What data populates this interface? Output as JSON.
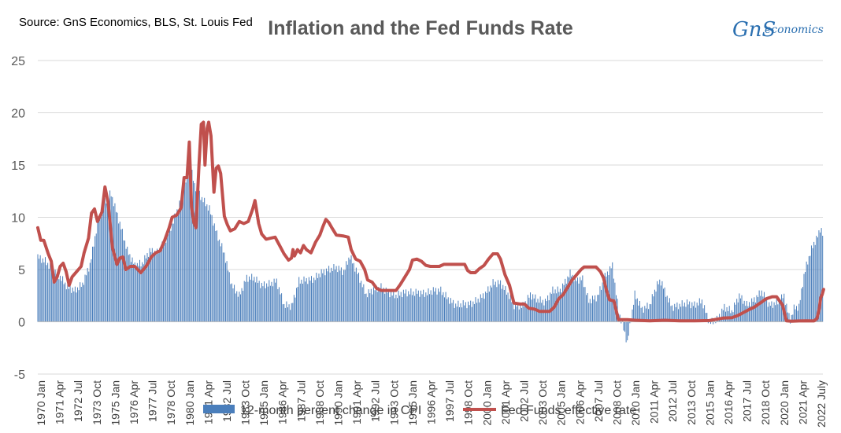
{
  "chart_data": {
    "type": "bar+line",
    "title": "Inflation and the Fed Funds Rate",
    "source": "Source: GnS Economics, BLS, St. Louis Fed",
    "logo": {
      "mark": "GnS",
      "word": "economics"
    },
    "ylim": [
      -5,
      25
    ],
    "yticks": [
      -5,
      0,
      5,
      10,
      15,
      20,
      25
    ],
    "xlim": [
      1970.0,
      2022.6
    ],
    "grid": true,
    "legend_position": "bottom",
    "x_tick_labels": [
      "1970 Jan",
      "1971 Apr",
      "1972 Jul",
      "1973 Oct",
      "1975 Jan",
      "1976 Apr",
      "1977 Jul",
      "1978 Oct",
      "1980 Jan",
      "1981 Apr",
      "1982 Jul",
      "1983 Oct",
      "1985 Jan",
      "1986 Apr",
      "1987 Jul",
      "1988 Oct",
      "1990 Jan",
      "1991 Apr",
      "1992 Jul",
      "1993 Oct",
      "1995 Jan",
      "1996 Apr",
      "1997 Jul",
      "1998 Oct",
      "2000 Jan",
      "2001 Apr",
      "2002 Jul",
      "2003 Oct",
      "2005 Jan",
      "2006 Apr",
      "2007 Jul",
      "2008 Oct",
      "2010 Jan",
      "2011 Apr",
      "2012 Jul",
      "2013 Oct",
      "2015 Jan",
      "2016 Apr",
      "2017 Jul",
      "2018 Oct",
      "2020 Jan",
      "2021 Apr",
      "2022 July"
    ],
    "series": [
      {
        "name": "12-month percent change in CPI",
        "type": "bar",
        "color": "#4a7ebb",
        "points": [
          [
            1970.0,
            6.2
          ],
          [
            1970.5,
            5.8
          ],
          [
            1971.0,
            5.0
          ],
          [
            1971.5,
            4.3
          ],
          [
            1972.0,
            3.3
          ],
          [
            1972.5,
            3.0
          ],
          [
            1973.0,
            3.6
          ],
          [
            1973.5,
            5.5
          ],
          [
            1974.0,
            9.4
          ],
          [
            1974.5,
            11.5
          ],
          [
            1974.9,
            12.3
          ],
          [
            1975.5,
            9.4
          ],
          [
            1976.0,
            6.8
          ],
          [
            1976.5,
            5.4
          ],
          [
            1977.0,
            5.6
          ],
          [
            1977.5,
            6.8
          ],
          [
            1978.0,
            6.6
          ],
          [
            1978.5,
            7.7
          ],
          [
            1979.0,
            9.3
          ],
          [
            1979.5,
            11.3
          ],
          [
            1980.0,
            13.9
          ],
          [
            1980.25,
            14.7
          ],
          [
            1980.5,
            13.1
          ],
          [
            1981.0,
            11.8
          ],
          [
            1981.5,
            10.8
          ],
          [
            1982.0,
            8.4
          ],
          [
            1982.5,
            6.5
          ],
          [
            1983.0,
            3.5
          ],
          [
            1983.5,
            2.5
          ],
          [
            1984.0,
            4.2
          ],
          [
            1984.5,
            4.2
          ],
          [
            1985.0,
            3.5
          ],
          [
            1985.5,
            3.6
          ],
          [
            1986.0,
            3.9
          ],
          [
            1986.5,
            1.6
          ],
          [
            1987.0,
            1.5
          ],
          [
            1987.5,
            3.9
          ],
          [
            1988.0,
            4.0
          ],
          [
            1988.5,
            4.1
          ],
          [
            1989.0,
            4.7
          ],
          [
            1989.5,
            5.0
          ],
          [
            1990.0,
            5.2
          ],
          [
            1990.5,
            4.8
          ],
          [
            1990.9,
            6.3
          ],
          [
            1991.5,
            4.4
          ],
          [
            1992.0,
            2.6
          ],
          [
            1992.5,
            3.1
          ],
          [
            1993.0,
            3.3
          ],
          [
            1993.5,
            2.8
          ],
          [
            1994.0,
            2.5
          ],
          [
            1994.5,
            2.8
          ],
          [
            1995.0,
            2.8
          ],
          [
            1995.5,
            2.8
          ],
          [
            1996.0,
            2.7
          ],
          [
            1996.5,
            3.0
          ],
          [
            1997.0,
            3.0
          ],
          [
            1997.5,
            2.2
          ],
          [
            1998.0,
            1.6
          ],
          [
            1998.5,
            1.7
          ],
          [
            1999.0,
            1.7
          ],
          [
            1999.5,
            2.1
          ],
          [
            2000.0,
            2.7
          ],
          [
            2000.5,
            3.7
          ],
          [
            2001.0,
            3.7
          ],
          [
            2001.5,
            2.7
          ],
          [
            2001.9,
            1.6
          ],
          [
            2002.5,
            1.5
          ],
          [
            2003.0,
            2.6
          ],
          [
            2003.5,
            2.1
          ],
          [
            2004.0,
            1.9
          ],
          [
            2004.5,
            3.0
          ],
          [
            2005.0,
            3.0
          ],
          [
            2005.7,
            4.7
          ],
          [
            2006.0,
            4.0
          ],
          [
            2006.5,
            4.1
          ],
          [
            2006.9,
            2.0
          ],
          [
            2007.5,
            2.4
          ],
          [
            2008.0,
            4.3
          ],
          [
            2008.5,
            5.4
          ],
          [
            2008.9,
            1.1
          ],
          [
            2009.5,
            -2.0
          ],
          [
            2010.0,
            2.6
          ],
          [
            2010.5,
            1.2
          ],
          [
            2011.0,
            1.6
          ],
          [
            2011.5,
            3.6
          ],
          [
            2011.8,
            3.9
          ],
          [
            2012.0,
            2.9
          ],
          [
            2012.5,
            1.4
          ],
          [
            2013.0,
            1.6
          ],
          [
            2013.5,
            1.8
          ],
          [
            2014.0,
            1.6
          ],
          [
            2014.5,
            2.0
          ],
          [
            2015.0,
            -0.1
          ],
          [
            2015.5,
            0.2
          ],
          [
            2016.0,
            1.4
          ],
          [
            2016.5,
            1.0
          ],
          [
            2017.0,
            2.5
          ],
          [
            2017.5,
            1.6
          ],
          [
            2018.0,
            2.1
          ],
          [
            2018.5,
            2.9
          ],
          [
            2019.0,
            1.6
          ],
          [
            2019.5,
            1.8
          ],
          [
            2020.0,
            2.5
          ],
          [
            2020.4,
            0.1
          ],
          [
            2020.7,
            1.4
          ],
          [
            2021.0,
            1.4
          ],
          [
            2021.3,
            4.2
          ],
          [
            2021.5,
            5.4
          ],
          [
            2021.8,
            6.8
          ],
          [
            2022.0,
            7.5
          ],
          [
            2022.3,
            8.3
          ],
          [
            2022.45,
            9.1
          ],
          [
            2022.6,
            8.3
          ]
        ]
      },
      {
        "name": "Fed Funds effective rate",
        "type": "line",
        "color": "#c0504d",
        "points": [
          [
            1970.0,
            9.0
          ],
          [
            1970.2,
            7.8
          ],
          [
            1970.4,
            7.8
          ],
          [
            1970.7,
            6.5
          ],
          [
            1970.9,
            5.8
          ],
          [
            1971.1,
            3.8
          ],
          [
            1971.3,
            4.3
          ],
          [
            1971.5,
            5.3
          ],
          [
            1971.7,
            5.6
          ],
          [
            1971.9,
            4.8
          ],
          [
            1972.1,
            3.5
          ],
          [
            1972.3,
            4.3
          ],
          [
            1972.6,
            4.8
          ],
          [
            1972.9,
            5.3
          ],
          [
            1973.1,
            6.6
          ],
          [
            1973.4,
            8.0
          ],
          [
            1973.6,
            10.4
          ],
          [
            1973.8,
            10.8
          ],
          [
            1974.0,
            9.6
          ],
          [
            1974.3,
            10.5
          ],
          [
            1974.5,
            12.9
          ],
          [
            1974.7,
            11.5
          ],
          [
            1975.0,
            7.1
          ],
          [
            1975.3,
            5.5
          ],
          [
            1975.5,
            6.1
          ],
          [
            1975.7,
            6.2
          ],
          [
            1975.9,
            5.0
          ],
          [
            1976.2,
            5.3
          ],
          [
            1976.5,
            5.3
          ],
          [
            1976.7,
            5.0
          ],
          [
            1976.9,
            4.7
          ],
          [
            1977.3,
            5.4
          ],
          [
            1977.6,
            6.2
          ],
          [
            1977.9,
            6.6
          ],
          [
            1978.2,
            6.8
          ],
          [
            1978.5,
            7.8
          ],
          [
            1978.8,
            9.0
          ],
          [
            1979.0,
            10.0
          ],
          [
            1979.3,
            10.2
          ],
          [
            1979.6,
            10.9
          ],
          [
            1979.8,
            13.8
          ],
          [
            1980.0,
            13.8
          ],
          [
            1980.15,
            17.2
          ],
          [
            1980.3,
            11.0
          ],
          [
            1980.45,
            9.5
          ],
          [
            1980.6,
            9.0
          ],
          [
            1980.8,
            15.0
          ],
          [
            1980.95,
            18.9
          ],
          [
            1981.1,
            19.1
          ],
          [
            1981.2,
            15.0
          ],
          [
            1981.35,
            18.5
          ],
          [
            1981.45,
            19.1
          ],
          [
            1981.6,
            17.8
          ],
          [
            1981.8,
            12.4
          ],
          [
            1981.95,
            14.7
          ],
          [
            1982.1,
            14.9
          ],
          [
            1982.25,
            14.2
          ],
          [
            1982.5,
            10.1
          ],
          [
            1982.7,
            9.3
          ],
          [
            1982.9,
            8.7
          ],
          [
            1983.2,
            8.9
          ],
          [
            1983.5,
            9.6
          ],
          [
            1983.8,
            9.4
          ],
          [
            1984.1,
            9.6
          ],
          [
            1984.4,
            10.8
          ],
          [
            1984.55,
            11.6
          ],
          [
            1984.8,
            9.4
          ],
          [
            1985.0,
            8.4
          ],
          [
            1985.3,
            7.9
          ],
          [
            1985.6,
            8.0
          ],
          [
            1985.9,
            8.1
          ],
          [
            1986.2,
            7.3
          ],
          [
            1986.5,
            6.5
          ],
          [
            1986.8,
            5.9
          ],
          [
            1987.0,
            6.1
          ],
          [
            1987.1,
            6.9
          ],
          [
            1987.2,
            6.3
          ],
          [
            1987.4,
            6.9
          ],
          [
            1987.6,
            6.6
          ],
          [
            1987.8,
            7.3
          ],
          [
            1988.0,
            6.9
          ],
          [
            1988.3,
            6.6
          ],
          [
            1988.6,
            7.6
          ],
          [
            1988.9,
            8.3
          ],
          [
            1989.1,
            9.1
          ],
          [
            1989.3,
            9.8
          ],
          [
            1989.5,
            9.5
          ],
          [
            1989.7,
            9.0
          ],
          [
            1990.0,
            8.3
          ],
          [
            1990.5,
            8.2
          ],
          [
            1990.8,
            8.1
          ],
          [
            1991.0,
            6.9
          ],
          [
            1991.3,
            6.0
          ],
          [
            1991.6,
            5.8
          ],
          [
            1991.9,
            5.0
          ],
          [
            1992.1,
            4.0
          ],
          [
            1992.4,
            3.8
          ],
          [
            1992.7,
            3.2
          ],
          [
            1993.0,
            3.0
          ],
          [
            1993.5,
            3.0
          ],
          [
            1994.0,
            3.0
          ],
          [
            1994.3,
            3.6
          ],
          [
            1994.6,
            4.3
          ],
          [
            1994.9,
            5.0
          ],
          [
            1995.1,
            5.9
          ],
          [
            1995.4,
            6.0
          ],
          [
            1995.7,
            5.8
          ],
          [
            1996.0,
            5.4
          ],
          [
            1996.3,
            5.3
          ],
          [
            1996.6,
            5.3
          ],
          [
            1996.9,
            5.3
          ],
          [
            1997.2,
            5.5
          ],
          [
            1997.6,
            5.5
          ],
          [
            1997.9,
            5.5
          ],
          [
            1998.3,
            5.5
          ],
          [
            1998.6,
            5.5
          ],
          [
            1998.8,
            4.9
          ],
          [
            1999.0,
            4.7
          ],
          [
            1999.3,
            4.7
          ],
          [
            1999.6,
            5.1
          ],
          [
            1999.9,
            5.4
          ],
          [
            2000.2,
            6.0
          ],
          [
            2000.5,
            6.5
          ],
          [
            2000.8,
            6.5
          ],
          [
            2001.0,
            6.0
          ],
          [
            2001.3,
            4.5
          ],
          [
            2001.6,
            3.5
          ],
          [
            2001.9,
            1.8
          ],
          [
            2002.3,
            1.7
          ],
          [
            2002.6,
            1.7
          ],
          [
            2002.9,
            1.3
          ],
          [
            2003.3,
            1.2
          ],
          [
            2003.6,
            1.0
          ],
          [
            2004.0,
            1.0
          ],
          [
            2004.3,
            1.0
          ],
          [
            2004.6,
            1.4
          ],
          [
            2004.9,
            2.2
          ],
          [
            2005.2,
            2.6
          ],
          [
            2005.5,
            3.3
          ],
          [
            2005.8,
            4.0
          ],
          [
            2006.1,
            4.5
          ],
          [
            2006.4,
            5.0
          ],
          [
            2006.6,
            5.25
          ],
          [
            2007.0,
            5.25
          ],
          [
            2007.4,
            5.25
          ],
          [
            2007.7,
            4.8
          ],
          [
            2007.9,
            4.2
          ],
          [
            2008.1,
            3.0
          ],
          [
            2008.3,
            2.1
          ],
          [
            2008.6,
            2.0
          ],
          [
            2008.9,
            0.2
          ],
          [
            2009.5,
            0.2
          ],
          [
            2010.0,
            0.15
          ],
          [
            2011.0,
            0.1
          ],
          [
            2012.0,
            0.15
          ],
          [
            2013.0,
            0.1
          ],
          [
            2014.0,
            0.1
          ],
          [
            2015.0,
            0.12
          ],
          [
            2015.9,
            0.35
          ],
          [
            2016.5,
            0.4
          ],
          [
            2016.9,
            0.6
          ],
          [
            2017.3,
            0.9
          ],
          [
            2017.7,
            1.2
          ],
          [
            2018.0,
            1.4
          ],
          [
            2018.4,
            1.8
          ],
          [
            2018.8,
            2.2
          ],
          [
            2019.2,
            2.4
          ],
          [
            2019.5,
            2.4
          ],
          [
            2019.7,
            2.0
          ],
          [
            2019.9,
            1.6
          ],
          [
            2020.15,
            0.1
          ],
          [
            2020.5,
            0.05
          ],
          [
            2021.0,
            0.08
          ],
          [
            2021.5,
            0.1
          ],
          [
            2022.0,
            0.08
          ],
          [
            2022.2,
            0.3
          ],
          [
            2022.35,
            1.2
          ],
          [
            2022.45,
            2.3
          ],
          [
            2022.55,
            2.6
          ],
          [
            2022.65,
            3.1
          ]
        ]
      }
    ]
  }
}
